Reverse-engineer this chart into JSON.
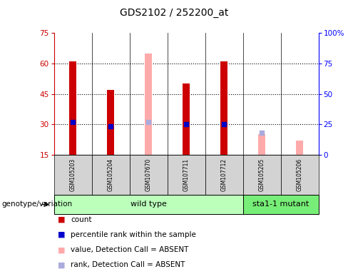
{
  "title": "GDS2102 / 252200_at",
  "samples": [
    "GSM105203",
    "GSM105204",
    "GSM107670",
    "GSM107711",
    "GSM107712",
    "GSM105205",
    "GSM105206"
  ],
  "groups": {
    "wild type": [
      0,
      1,
      2,
      3,
      4
    ],
    "sta1-1 mutant": [
      5,
      6
    ]
  },
  "ylim_left": [
    15,
    75
  ],
  "ylim_right": [
    0,
    100
  ],
  "yticks_left": [
    15,
    30,
    45,
    60,
    75
  ],
  "yticks_right": [
    0,
    25,
    50,
    75,
    100
  ],
  "ytick_labels_right": [
    "0",
    "25",
    "50",
    "75",
    "100%"
  ],
  "red_bars": [
    61,
    47,
    null,
    50,
    61,
    null,
    null
  ],
  "blue_dots": [
    31,
    29,
    null,
    30,
    30,
    null,
    null
  ],
  "pink_bars": [
    null,
    null,
    65,
    null,
    null,
    25,
    22
  ],
  "blue_light_dots": [
    null,
    null,
    31,
    null,
    null,
    26,
    null
  ],
  "bar_width": 0.18,
  "color_red": "#cc0000",
  "color_blue": "#0000cc",
  "color_pink": "#ffaaaa",
  "color_light_blue": "#aaaadd",
  "color_wildtype_bg": "#bbffbb",
  "color_mutant_bg": "#77ee77",
  "color_sample_bg": "#d3d3d3",
  "label_count": "count",
  "label_percentile": "percentile rank within the sample",
  "label_value_absent": "value, Detection Call = ABSENT",
  "label_rank_absent": "rank, Detection Call = ABSENT",
  "genotype_label": "genotype/variation",
  "wildtype_label": "wild type",
  "mutant_label": "sta1-1 mutant",
  "grid_lines": [
    30,
    45,
    60
  ],
  "title_fontsize": 10,
  "tick_fontsize": 7.5,
  "sample_fontsize": 5.5,
  "group_fontsize": 8,
  "legend_fontsize": 7.5
}
